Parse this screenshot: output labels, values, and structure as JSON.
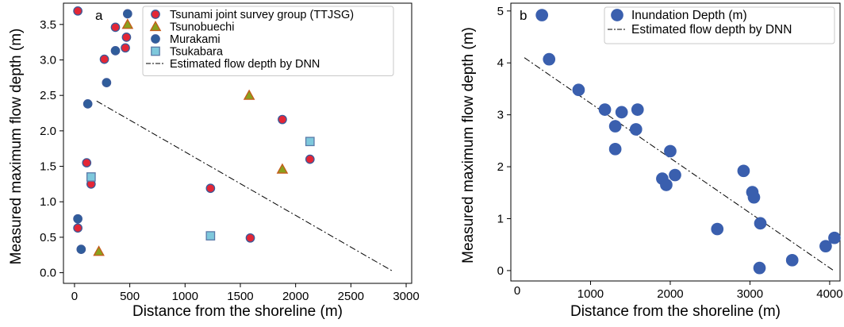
{
  "colors": {
    "red_fill": "#e32636",
    "marker_edge": "#3a5a9a",
    "green_fill": "#8aa01e",
    "green_edge": "#c55a1a",
    "blue_fill": "#2f5d9b",
    "cyan_fill": "#7ec8dc",
    "cyan_edge": "#5a7aa8",
    "inundation_fill": "#3a5fae",
    "line": "#000000"
  },
  "chart_data": [
    {
      "type": "scatter",
      "panel_label": "a",
      "xlabel": "Distance from the shoreline (m)",
      "ylabel": "Measured maximum flow depth (m)",
      "xlim": [
        -100,
        3050
      ],
      "ylim": [
        -0.15,
        3.8
      ],
      "xticks": [
        0,
        500,
        1000,
        1500,
        2000,
        2500,
        3000
      ],
      "yticks": [
        0.0,
        0.5,
        1.0,
        1.5,
        2.0,
        2.5,
        3.0,
        3.5
      ],
      "ytick_labels": [
        "0.0",
        "0.5",
        "1.0",
        "1.5",
        "2.0",
        "2.5",
        "3.0",
        "3.5"
      ],
      "legend_position": "top-right",
      "series": [
        {
          "name": "Tsunami joint survey group (TTJSG)",
          "marker": "circle",
          "fill": "#e32636",
          "edge": "#3a5a9a",
          "points": [
            [
              30,
              3.69
            ],
            [
              370,
              3.46
            ],
            [
              470,
              3.32
            ],
            [
              460,
              3.17
            ],
            [
              270,
              3.01
            ],
            [
              1880,
              2.16
            ],
            [
              110,
              1.55
            ],
            [
              2130,
              1.6
            ],
            [
              150,
              1.25
            ],
            [
              1230,
              1.19
            ],
            [
              30,
              0.63
            ],
            [
              1590,
              0.49
            ]
          ]
        },
        {
          "name": "Tsunobuechi",
          "marker": "triangle",
          "fill": "#8aa01e",
          "edge": "#c55a1a",
          "points": [
            [
              480,
              3.5
            ],
            [
              1580,
              2.5
            ],
            [
              1880,
              1.46
            ],
            [
              220,
              0.3
            ]
          ]
        },
        {
          "name": "Murakami",
          "marker": "circle",
          "fill": "#2f5d9b",
          "edge": "#3a5a9a",
          "points": [
            [
              480,
              3.65
            ],
            [
              370,
              3.13
            ],
            [
              290,
              2.68
            ],
            [
              120,
              2.38
            ],
            [
              30,
              0.76
            ],
            [
              60,
              0.33
            ]
          ]
        },
        {
          "name": "Tsukabara",
          "marker": "square",
          "fill": "#7ec8dc",
          "edge": "#5a7aa8",
          "points": [
            [
              2130,
              1.85
            ],
            [
              150,
              1.35
            ],
            [
              1230,
              0.52
            ]
          ]
        }
      ],
      "lines": [
        {
          "name": "Estimated flow depth by DNN",
          "style": "dashdot",
          "points": [
            [
              200,
              2.42
            ],
            [
              2880,
              0.02
            ]
          ]
        }
      ]
    },
    {
      "type": "scatter",
      "panel_label": "b",
      "xlabel": "Distance from the shoreline (m)",
      "ylabel": "Measured maximum flow depth (m)",
      "xlim": [
        0,
        4130
      ],
      "ylim": [
        -0.2,
        5.15
      ],
      "xticks": [
        1000,
        2000,
        3000,
        4000
      ],
      "yticks": [
        0,
        1,
        2,
        3,
        4,
        5
      ],
      "ytick_labels": [
        "0",
        "1",
        "2",
        "3",
        "4",
        "5"
      ],
      "extra_tick_labels": [
        {
          "x": 0,
          "text": "0"
        }
      ],
      "legend_position": "top-right",
      "series": [
        {
          "name": "Inundation Depth (m)",
          "marker": "circle",
          "fill": "#3a5fae",
          "edge": "#3a5fae",
          "points": [
            [
              390,
              4.92
            ],
            [
              480,
              4.07
            ],
            [
              850,
              3.48
            ],
            [
              1180,
              3.1
            ],
            [
              1390,
              3.05
            ],
            [
              1590,
              3.1
            ],
            [
              1310,
              2.78
            ],
            [
              1570,
              2.72
            ],
            [
              1310,
              2.34
            ],
            [
              2000,
              2.3
            ],
            [
              2060,
              1.84
            ],
            [
              1900,
              1.77
            ],
            [
              1950,
              1.65
            ],
            [
              2920,
              1.92
            ],
            [
              3030,
              1.51
            ],
            [
              3050,
              1.41
            ],
            [
              3130,
              0.91
            ],
            [
              2590,
              0.8
            ],
            [
              3950,
              0.47
            ],
            [
              4060,
              0.63
            ],
            [
              3530,
              0.2
            ],
            [
              3120,
              0.05
            ]
          ]
        }
      ],
      "lines": [
        {
          "name": "Estimated flow depth by DNN",
          "style": "dashdot",
          "points": [
            [
              170,
              4.1
            ],
            [
              4050,
              0.0
            ]
          ]
        }
      ]
    }
  ]
}
